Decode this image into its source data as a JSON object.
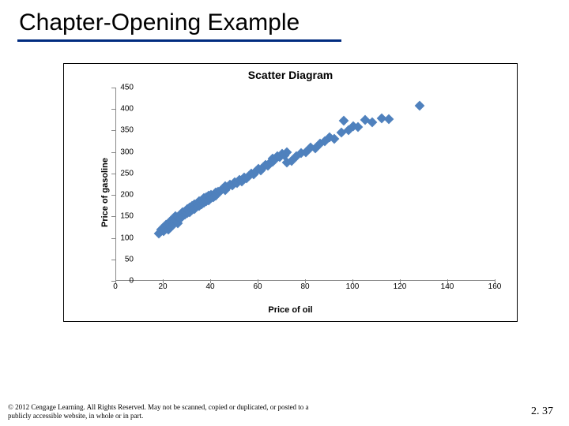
{
  "slide": {
    "title": "Chapter-Opening Example"
  },
  "chart": {
    "type": "scatter",
    "title": "Scatter Diagram",
    "xlabel": "Price of oil",
    "ylabel": "Price of gasoline",
    "xlim": [
      0,
      160
    ],
    "ylim": [
      0,
      450
    ],
    "xtick_step": 20,
    "ytick_step": 50,
    "xticks": [
      0,
      20,
      40,
      60,
      80,
      100,
      120,
      140,
      160
    ],
    "yticks": [
      0,
      50,
      100,
      150,
      200,
      250,
      300,
      350,
      400,
      450
    ],
    "marker_style": "diamond",
    "marker_color": "#4f81bd",
    "marker_size": 9,
    "background_color": "#ffffff",
    "border_color": "#000000",
    "axis_color": "#888888",
    "label_fontsize": 11,
    "tick_fontsize": 10,
    "title_fontsize": 14,
    "points": [
      [
        18,
        110
      ],
      [
        19,
        120
      ],
      [
        20,
        115
      ],
      [
        20,
        125
      ],
      [
        21,
        130
      ],
      [
        22,
        120
      ],
      [
        22,
        135
      ],
      [
        23,
        125
      ],
      [
        23,
        140
      ],
      [
        24,
        130
      ],
      [
        24,
        145
      ],
      [
        25,
        140
      ],
      [
        25,
        150
      ],
      [
        26,
        135
      ],
      [
        26,
        148
      ],
      [
        27,
        145
      ],
      [
        27,
        155
      ],
      [
        28,
        150
      ],
      [
        28,
        160
      ],
      [
        29,
        155
      ],
      [
        29,
        162
      ],
      [
        30,
        158
      ],
      [
        30,
        168
      ],
      [
        31,
        160
      ],
      [
        31,
        170
      ],
      [
        32,
        165
      ],
      [
        32,
        175
      ],
      [
        33,
        168
      ],
      [
        33,
        178
      ],
      [
        34,
        172
      ],
      [
        34,
        180
      ],
      [
        35,
        175
      ],
      [
        35,
        185
      ],
      [
        36,
        178
      ],
      [
        36,
        188
      ],
      [
        37,
        182
      ],
      [
        37,
        192
      ],
      [
        38,
        185
      ],
      [
        38,
        195
      ],
      [
        39,
        188
      ],
      [
        39,
        198
      ],
      [
        40,
        192
      ],
      [
        40,
        200
      ],
      [
        41,
        195
      ],
      [
        42,
        205
      ],
      [
        42,
        198
      ],
      [
        43,
        208
      ],
      [
        44,
        210
      ],
      [
        45,
        215
      ],
      [
        46,
        212
      ],
      [
        46,
        220
      ],
      [
        47,
        218
      ],
      [
        48,
        225
      ],
      [
        49,
        222
      ],
      [
        50,
        230
      ],
      [
        51,
        228
      ],
      [
        52,
        235
      ],
      [
        53,
        232
      ],
      [
        54,
        240
      ],
      [
        55,
        238
      ],
      [
        56,
        245
      ],
      [
        57,
        250
      ],
      [
        58,
        248
      ],
      [
        59,
        255
      ],
      [
        60,
        260
      ],
      [
        61,
        258
      ],
      [
        62,
        265
      ],
      [
        63,
        270
      ],
      [
        64,
        268
      ],
      [
        65,
        275
      ],
      [
        66,
        278
      ],
      [
        66,
        285
      ],
      [
        67,
        282
      ],
      [
        68,
        290
      ],
      [
        69,
        288
      ],
      [
        70,
        295
      ],
      [
        71,
        292
      ],
      [
        72,
        300
      ],
      [
        72,
        275
      ],
      [
        74,
        280
      ],
      [
        76,
        290
      ],
      [
        78,
        298
      ],
      [
        80,
        300
      ],
      [
        82,
        310
      ],
      [
        84,
        308
      ],
      [
        86,
        320
      ],
      [
        88,
        326
      ],
      [
        90,
        334
      ],
      [
        92,
        330
      ],
      [
        95,
        345
      ],
      [
        96,
        372
      ],
      [
        98,
        350
      ],
      [
        100,
        360
      ],
      [
        102,
        358
      ],
      [
        105,
        375
      ],
      [
        108,
        370
      ],
      [
        112,
        378
      ],
      [
        115,
        376
      ],
      [
        128,
        408
      ]
    ]
  },
  "footer": {
    "copyright": "© 2012 Cengage Learning. All Rights Reserved. May not be scanned, copied or duplicated, or posted to a publicly accessible website, in whole or in part.",
    "page": "2. 37"
  }
}
